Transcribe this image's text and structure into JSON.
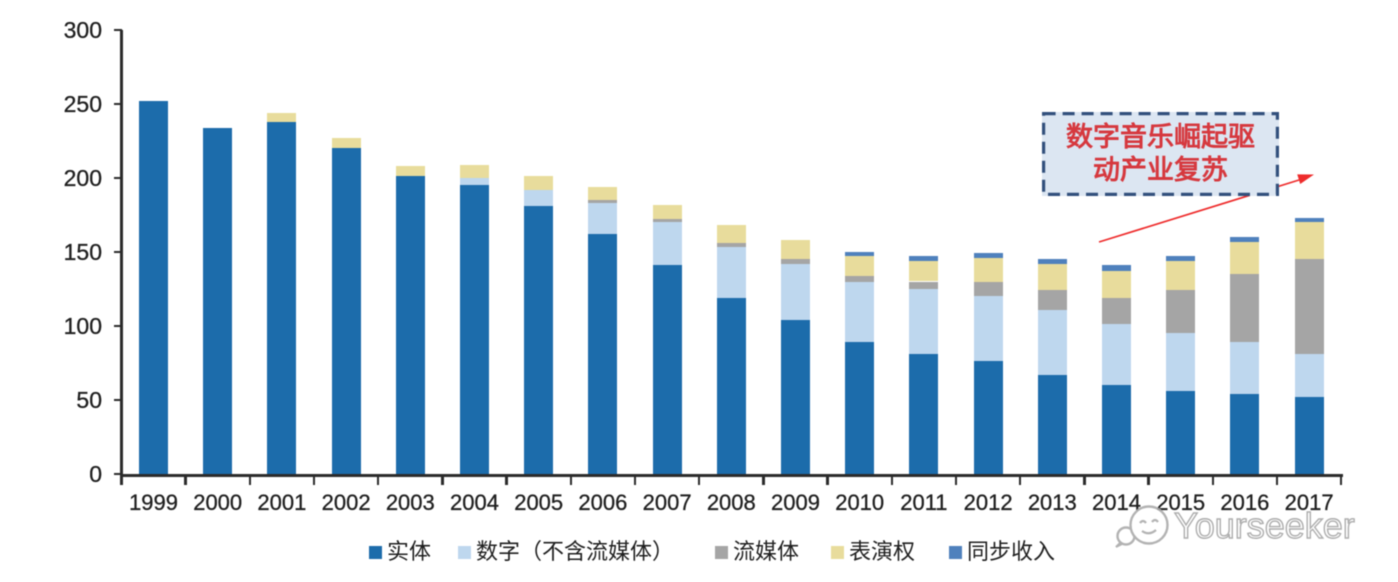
{
  "chart_data": {
    "type": "bar",
    "stacked": true,
    "categories": [
      "1999",
      "2000",
      "2001",
      "2002",
      "2003",
      "2004",
      "2005",
      "2006",
      "2007",
      "2008",
      "2009",
      "2010",
      "2011",
      "2012",
      "2013",
      "2014",
      "2015",
      "2016",
      "2017"
    ],
    "series": [
      {
        "name": "实体",
        "color": "#1c6cab",
        "values": [
          252,
          234,
          238,
          220,
          201,
          195,
          181,
          162,
          141,
          119,
          104,
          89,
          81,
          76,
          67,
          60,
          56,
          54,
          52
        ]
      },
      {
        "name": "数字（不含流媒体）",
        "color": "#bed7ee",
        "values": [
          0,
          0,
          0,
          0,
          0,
          5,
          11,
          21,
          29,
          34,
          38,
          41,
          44,
          44,
          44,
          41,
          39,
          35,
          29
        ]
      },
      {
        "name": "流媒体",
        "color": "#a5a5a5",
        "values": [
          0,
          0,
          0,
          0,
          0,
          0,
          0,
          2,
          2,
          3,
          3,
          4,
          5,
          10,
          13,
          18,
          29,
          46,
          64
        ]
      },
      {
        "name": "表演权",
        "color": "#e8dc9c",
        "values": [
          0,
          0,
          6,
          7,
          7,
          9,
          9,
          9,
          10,
          12,
          13,
          13,
          14,
          16,
          18,
          18,
          20,
          22,
          25
        ]
      },
      {
        "name": "同步收入",
        "color": "#4f81bd",
        "values": [
          0,
          0,
          0,
          0,
          0,
          0,
          0,
          0,
          0,
          0,
          0,
          3,
          3,
          3,
          3,
          4,
          3,
          3,
          3
        ]
      }
    ],
    "totals": [
      252,
      234,
      244,
      227,
      208,
      209,
      201,
      194,
      182,
      168,
      158,
      150,
      147,
      149,
      145,
      141,
      147,
      160,
      173
    ],
    "xlabel": "",
    "ylabel": "",
    "ylim": [
      0,
      300
    ],
    "y_ticks": [
      0,
      50,
      100,
      150,
      200,
      250,
      300
    ],
    "grid": false,
    "legend_position": "bottom"
  },
  "annotation": {
    "lines": [
      "数字音乐崛起驱",
      "动产业复苏"
    ],
    "text_color": "#d6383e",
    "box_fill": "#dce6f2",
    "box_border": "#32507c",
    "arrow_color": "#ee2c2c"
  },
  "watermark": {
    "text": "Yourseeker",
    "color": "#a6a6a6",
    "logo": "speech-bubble-face-logo"
  },
  "style": {
    "axis_color": "#2b2b2b",
    "label_color": "#1f1f1f",
    "background": "#ffffff"
  }
}
